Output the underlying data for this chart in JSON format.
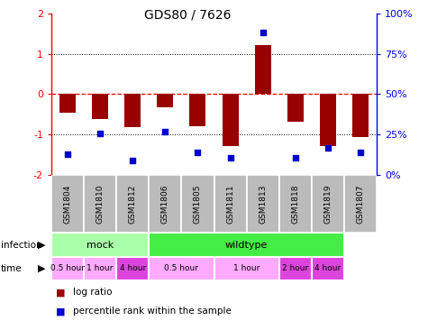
{
  "title": "GDS80 / 7626",
  "samples": [
    "GSM1804",
    "GSM1810",
    "GSM1812",
    "GSM1806",
    "GSM1805",
    "GSM1811",
    "GSM1813",
    "GSM1818",
    "GSM1819",
    "GSM1807"
  ],
  "log_ratio": [
    -0.45,
    -0.62,
    -0.82,
    -0.33,
    -0.78,
    -1.28,
    1.22,
    -0.68,
    -1.28,
    -1.05
  ],
  "percentile": [
    13,
    26,
    9,
    27,
    14,
    11,
    88,
    11,
    17,
    14
  ],
  "ylim": [
    -2,
    2
  ],
  "bar_color": "#990000",
  "dot_color": "#0000cc",
  "infection_mock_color": "#aaffaa",
  "infection_wildtype_color": "#44ee44",
  "infection_groups": [
    {
      "label": "mock",
      "start": 0,
      "end": 3
    },
    {
      "label": "wildtype",
      "start": 3,
      "end": 9
    }
  ],
  "time_groups": [
    {
      "label": "0.5 hour",
      "start": 0,
      "end": 1,
      "color": "#ffaaff"
    },
    {
      "label": "1 hour",
      "start": 1,
      "end": 2,
      "color": "#ffaaff"
    },
    {
      "label": "4 hour",
      "start": 2,
      "end": 3,
      "color": "#dd44dd"
    },
    {
      "label": "0.5 hour",
      "start": 3,
      "end": 5,
      "color": "#ffaaff"
    },
    {
      "label": "1 hour",
      "start": 5,
      "end": 7,
      "color": "#ffaaff"
    },
    {
      "label": "2 hour",
      "start": 7,
      "end": 8,
      "color": "#dd44dd"
    },
    {
      "label": "4 hour",
      "start": 8,
      "end": 9,
      "color": "#dd44dd"
    }
  ],
  "background_color": "#ffffff",
  "sample_bg_color": "#bbbbbb"
}
